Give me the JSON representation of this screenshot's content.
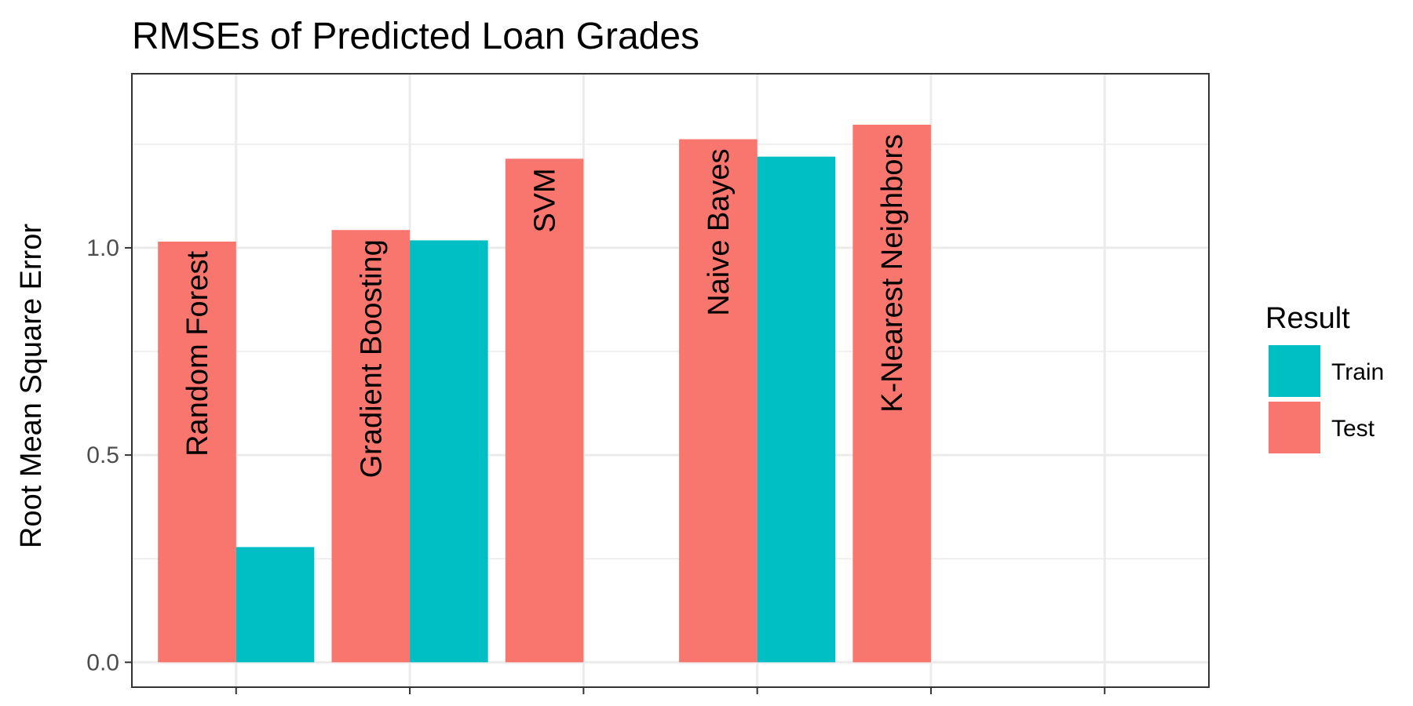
{
  "chart_data": {
    "type": "bar",
    "title": "RMSEs of Predicted Loan Grades",
    "xlabel": "",
    "ylabel": "Root Mean Square Error",
    "ylim": [
      -0.06,
      1.42
    ],
    "yticks": [
      0.0,
      0.5,
      1.0
    ],
    "ytick_labels": [
      "0.0",
      "0.5",
      "1.0"
    ],
    "grid": true,
    "legend_position": "right",
    "legend_title": "Result",
    "categories": [
      "Random Forest",
      "Gradient Boosting",
      "SVM",
      "Naive Bayes",
      "K-Nearest Neighbors"
    ],
    "series": [
      {
        "name": "Test",
        "color": "#F8766D",
        "values": [
          1.015,
          1.043,
          1.215,
          1.262,
          1.297
        ]
      },
      {
        "name": "Train",
        "color": "#00BFC4",
        "values": [
          0.278,
          1.018,
          null,
          1.22,
          null
        ]
      }
    ],
    "legend_order": [
      "Train",
      "Test"
    ]
  }
}
